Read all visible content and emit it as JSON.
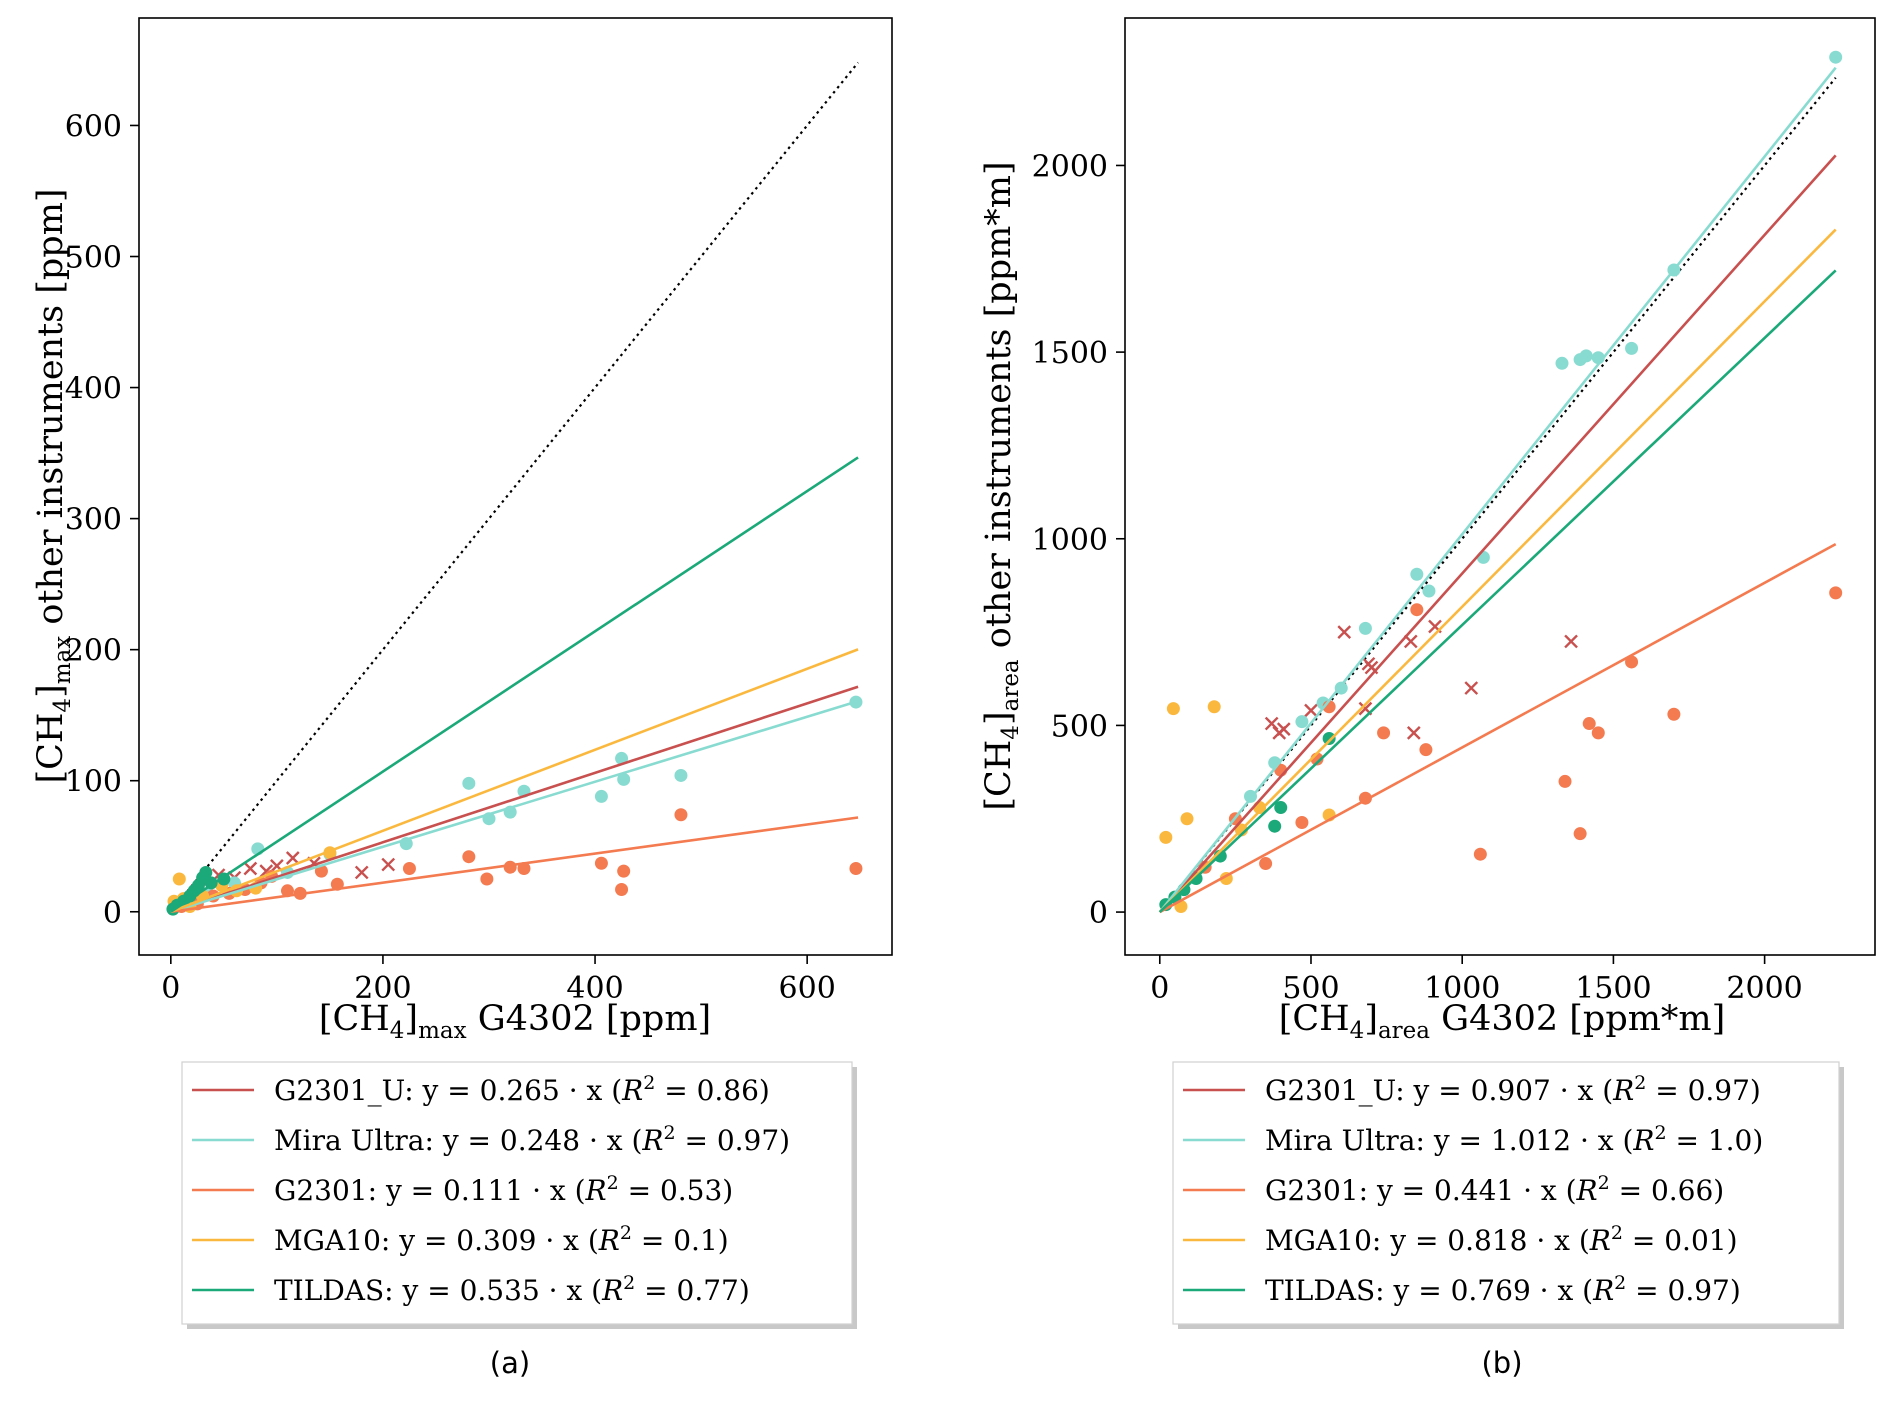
{
  "chart_data": [
    {
      "type": "scatter",
      "panel_label": "(a)",
      "x_title": {
        "main": "[CH",
        "sub1": "4",
        "mid": "]",
        "sub2": "max",
        "tail": " G4302 [ppm]"
      },
      "y_title": {
        "main": "[CH",
        "sub1": "4",
        "mid": "]",
        "sub2": "max",
        "tail": " other instruments [ppm]"
      },
      "xlim": [
        -30,
        680
      ],
      "ylim": [
        -33,
        682
      ],
      "xticks": [
        0,
        200,
        400,
        600
      ],
      "yticks": [
        0,
        100,
        200,
        300,
        400,
        500,
        600
      ],
      "identity_line": [
        0,
        648
      ],
      "series": [
        {
          "name": "G2301_U",
          "color": "#c8504f",
          "slope": 0.265,
          "r2": "0.86",
          "x_end": 648,
          "legend": {
            "prefix": "G2301_U: y = 0.265 · x (",
            "r2text": " = 0.86)"
          },
          "points": [
            [
              28,
              18
            ],
            [
              45,
              28
            ],
            [
              60,
              26
            ],
            [
              75,
              33
            ],
            [
              90,
              31
            ],
            [
              100,
              35
            ],
            [
              115,
              41
            ],
            [
              135,
              37
            ],
            [
              180,
              30
            ],
            [
              205,
              36
            ]
          ],
          "cross": true
        },
        {
          "name": "Mira Ultra",
          "color": "#88dbd0",
          "slope": 0.248,
          "r2": "0.97",
          "x_end": 648,
          "legend": {
            "prefix": "Mira Ultra: y = 0.248 · x (",
            "r2text": " = 0.97)"
          },
          "points": [
            [
              5,
              4
            ],
            [
              20,
              9
            ],
            [
              35,
              14
            ],
            [
              60,
              22
            ],
            [
              82,
              48
            ],
            [
              110,
              30
            ],
            [
              150,
              44
            ],
            [
              222,
              52
            ],
            [
              281,
              98
            ],
            [
              300,
              71
            ],
            [
              320,
              76
            ],
            [
              333,
              92
            ],
            [
              406,
              88
            ],
            [
              425,
              117
            ],
            [
              427,
              101
            ],
            [
              481,
              104
            ],
            [
              646,
              160
            ]
          ],
          "cross": false
        },
        {
          "name": "G2301",
          "color": "#f47a50",
          "slope": 0.111,
          "r2": "0.53",
          "x_end": 648,
          "legend": {
            "prefix": "G2301: y = 0.111 · x (",
            "r2text": " = 0.53)"
          },
          "points": [
            [
              10,
              4
            ],
            [
              25,
              6
            ],
            [
              40,
              12
            ],
            [
              55,
              14
            ],
            [
              70,
              17
            ],
            [
              85,
              22
            ],
            [
              95,
              27
            ],
            [
              110,
              16
            ],
            [
              122,
              14
            ],
            [
              142,
              31
            ],
            [
              157,
              21
            ],
            [
              225,
              33
            ],
            [
              281,
              42
            ],
            [
              298,
              25
            ],
            [
              320,
              34
            ],
            [
              333,
              33
            ],
            [
              406,
              37
            ],
            [
              425,
              17
            ],
            [
              427,
              31
            ],
            [
              481,
              74
            ],
            [
              646,
              33
            ]
          ],
          "cross": false
        },
        {
          "name": "MGA10",
          "color": "#fbb83e",
          "slope": 0.309,
          "r2": "0.1",
          "x_end": 648,
          "legend": {
            "prefix": "MGA10: y = 0.309 · x (",
            "r2text": " = 0.1)"
          },
          "points": [
            [
              3,
              8
            ],
            [
              8,
              25
            ],
            [
              12,
              10
            ],
            [
              18,
              4
            ],
            [
              22,
              15
            ],
            [
              30,
              12
            ],
            [
              48,
              20
            ],
            [
              62,
              16
            ],
            [
              80,
              18
            ],
            [
              150,
              45
            ]
          ],
          "cross": false
        },
        {
          "name": "TILDAS",
          "color": "#1ba97a",
          "slope": 0.535,
          "r2": "0.77",
          "x_end": 648,
          "legend": {
            "prefix": "TILDAS: y = 0.535 · x (",
            "r2text": " = 0.77)"
          },
          "points": [
            [
              2,
              2
            ],
            [
              6,
              5
            ],
            [
              12,
              8
            ],
            [
              18,
              12
            ],
            [
              22,
              16
            ],
            [
              26,
              20
            ],
            [
              30,
              26
            ],
            [
              33,
              30
            ],
            [
              38,
              22
            ],
            [
              50,
              25
            ]
          ],
          "cross": false
        }
      ]
    },
    {
      "type": "scatter",
      "panel_label": "(b)",
      "x_title": {
        "main": "[CH",
        "sub1": "4",
        "mid": "]",
        "sub2": "area",
        "tail": " G4302 [ppm*m]"
      },
      "y_title": {
        "main": "[CH",
        "sub1": "4",
        "mid": "]",
        "sub2": "area",
        "tail": " other instruments [ppm*m]"
      },
      "xlim": [
        -115,
        2365
      ],
      "ylim": [
        -115,
        2395
      ],
      "xticks": [
        0,
        500,
        1000,
        1500,
        2000
      ],
      "yticks": [
        0,
        500,
        1000,
        1500,
        2000
      ],
      "identity_line": [
        0,
        2235
      ],
      "series": [
        {
          "name": "G2301_U",
          "color": "#c8504f",
          "slope": 0.907,
          "r2": "0.97",
          "x_end": 2235,
          "legend": {
            "prefix": "G2301_U: y = 0.907 · x (",
            "r2text": " = 0.97)"
          },
          "points": [
            [
              370,
              505
            ],
            [
              395,
              480
            ],
            [
              410,
              490
            ],
            [
              500,
              540
            ],
            [
              610,
              750
            ],
            [
              680,
              545
            ],
            [
              690,
              665
            ],
            [
              700,
              655
            ],
            [
              830,
              725
            ],
            [
              840,
              480
            ],
            [
              910,
              765
            ],
            [
              1030,
              600
            ],
            [
              1360,
              725
            ]
          ],
          "cross": true
        },
        {
          "name": "Mira Ultra",
          "color": "#88dbd0",
          "slope": 1.012,
          "r2": "1.0",
          "x_end": 2235,
          "legend": {
            "prefix": "Mira Ultra: y = 1.012 · x (",
            "r2text": " = 1.0)"
          },
          "points": [
            [
              300,
              310
            ],
            [
              380,
              400
            ],
            [
              470,
              510
            ],
            [
              540,
              560
            ],
            [
              600,
              600
            ],
            [
              680,
              760
            ],
            [
              850,
              905
            ],
            [
              890,
              860
            ],
            [
              1070,
              950
            ],
            [
              1330,
              1470
            ],
            [
              1390,
              1480
            ],
            [
              1410,
              1490
            ],
            [
              1450,
              1485
            ],
            [
              1560,
              1510
            ],
            [
              1700,
              1720
            ],
            [
              2235,
              2290
            ]
          ],
          "cross": false
        },
        {
          "name": "G2301",
          "color": "#f47a50",
          "slope": 0.441,
          "r2": "0.66",
          "x_end": 2235,
          "legend": {
            "prefix": "G2301: y = 0.441 · x (",
            "r2text": " = 0.66)"
          },
          "points": [
            [
              150,
              120
            ],
            [
              250,
              250
            ],
            [
              350,
              130
            ],
            [
              400,
              380
            ],
            [
              470,
              240
            ],
            [
              520,
              410
            ],
            [
              560,
              550
            ],
            [
              680,
              305
            ],
            [
              740,
              480
            ],
            [
              850,
              810
            ],
            [
              880,
              435
            ],
            [
              1060,
              155
            ],
            [
              1340,
              350
            ],
            [
              1390,
              210
            ],
            [
              1420,
              505
            ],
            [
              1450,
              480
            ],
            [
              1560,
              670
            ],
            [
              1700,
              530
            ],
            [
              2235,
              855
            ]
          ],
          "cross": false
        },
        {
          "name": "MGA10",
          "color": "#fbb83e",
          "slope": 0.818,
          "r2": "0.01",
          "x_end": 2235,
          "legend": {
            "prefix": "MGA10: y = 0.818 · x (",
            "r2text": " = 0.01)"
          },
          "points": [
            [
              20,
              200
            ],
            [
              45,
              545
            ],
            [
              70,
              15
            ],
            [
              90,
              250
            ],
            [
              180,
              550
            ],
            [
              220,
              90
            ],
            [
              270,
              220
            ],
            [
              330,
              280
            ],
            [
              560,
              260
            ]
          ],
          "cross": false
        },
        {
          "name": "TILDAS",
          "color": "#1ba97a",
          "slope": 0.769,
          "r2": "0.97",
          "x_end": 2235,
          "legend": {
            "prefix": "TILDAS: y = 0.769 · x (",
            "r2text": " = 0.97)"
          },
          "points": [
            [
              20,
              20
            ],
            [
              50,
              40
            ],
            [
              80,
              60
            ],
            [
              120,
              90
            ],
            [
              200,
              150
            ],
            [
              380,
              230
            ],
            [
              400,
              280
            ],
            [
              560,
              465
            ]
          ],
          "cross": false
        }
      ]
    }
  ]
}
